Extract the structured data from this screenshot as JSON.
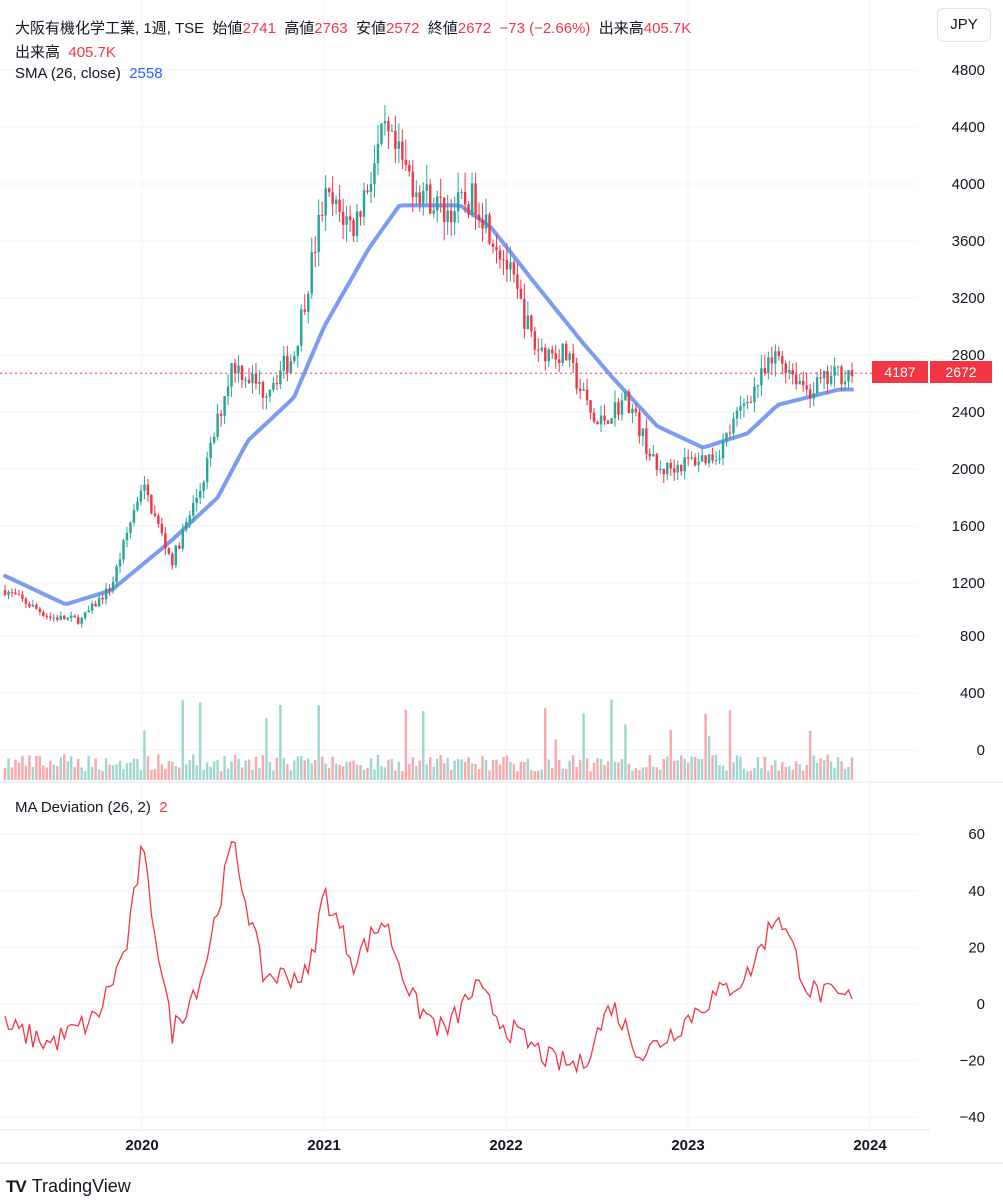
{
  "header": {
    "symbol_line": "大阪有機化学工業, 1週, TSE",
    "open_label": "始値",
    "open_value": "2741",
    "high_label": "高値",
    "high_value": "2763",
    "low_label": "安値",
    "low_value": "2572",
    "close_label": "終値",
    "close_value": "2672",
    "change": "−73 (−2.66%)",
    "volume_label": "出来高",
    "volume_value": "405.7K"
  },
  "volume_legend": {
    "label": "出来高",
    "value": "405.7K"
  },
  "sma_legend": {
    "label": "SMA (26, close)",
    "value": "2558"
  },
  "deviation_legend": {
    "label": "MA Deviation (26, 2)",
    "value": "2"
  },
  "currency_button": "JPY",
  "price_tags": {
    "countdown": "4187",
    "last_price": "2672"
  },
  "brand": {
    "name": "TradingView",
    "mark": "TV"
  },
  "colors": {
    "up": "#26a69a",
    "down": "#f23645",
    "sma": "#2962ff",
    "deviation": "#f23645"
  },
  "chart_data": {
    "type": "candlestick",
    "x_axis": {
      "ticks": [
        "2020",
        "2021",
        "2022",
        "2023",
        "2024"
      ]
    },
    "price_axis": {
      "ticks": [
        1200,
        1600,
        2000,
        2400,
        2800,
        3200,
        3600,
        4000,
        4400,
        4800
      ],
      "range": [
        1200,
        4800
      ]
    },
    "volume_axis": {
      "ticks": [
        0,
        400,
        800,
        1200
      ],
      "unit": "K"
    },
    "deviation_axis": {
      "ticks": [
        -40,
        -20,
        0,
        20,
        40,
        60
      ],
      "range": [
        -40,
        60
      ]
    },
    "price_path": [
      [
        "2019-04",
        1150
      ],
      [
        "2019-07",
        960
      ],
      [
        "2019-09",
        940
      ],
      [
        "2019-11",
        1180
      ],
      [
        "2020-01",
        1900
      ],
      [
        "2020-03",
        1350
      ],
      [
        "2020-05",
        1900
      ],
      [
        "2020-07",
        2750
      ],
      [
        "2020-09",
        2550
      ],
      [
        "2020-11",
        2800
      ],
      [
        "2021-01",
        3900
      ],
      [
        "2021-03",
        3700
      ],
      [
        "2021-05",
        4350
      ],
      [
        "2021-07",
        4000
      ],
      [
        "2021-09",
        3800
      ],
      [
        "2021-11",
        3900
      ],
      [
        "2022-01",
        3450
      ],
      [
        "2022-03",
        2850
      ],
      [
        "2022-05",
        2800
      ],
      [
        "2022-07",
        2300
      ],
      [
        "2022-09",
        2500
      ],
      [
        "2022-11",
        1980
      ],
      [
        "2023-01",
        2050
      ],
      [
        "2023-03",
        2100
      ],
      [
        "2023-05",
        2500
      ],
      [
        "2023-07",
        2800
      ],
      [
        "2023-09",
        2550
      ],
      [
        "2023-11",
        2672
      ]
    ],
    "sma_path": [
      [
        "2019-04",
        1250
      ],
      [
        "2019-08",
        1050
      ],
      [
        "2019-11",
        1150
      ],
      [
        "2020-03",
        1500
      ],
      [
        "2020-06",
        1800
      ],
      [
        "2020-08",
        2200
      ],
      [
        "2020-11",
        2500
      ],
      [
        "2021-01",
        3000
      ],
      [
        "2021-04",
        3550
      ],
      [
        "2021-06",
        3850
      ],
      [
        "2021-10",
        3850
      ],
      [
        "2021-12",
        3700
      ],
      [
        "2022-03",
        3300
      ],
      [
        "2022-06",
        2900
      ],
      [
        "2022-08",
        2650
      ],
      [
        "2022-11",
        2300
      ],
      [
        "2023-02",
        2150
      ],
      [
        "2023-05",
        2250
      ],
      [
        "2023-07",
        2450
      ],
      [
        "2023-11",
        2558
      ]
    ],
    "deviation_path": [
      [
        "2019-04",
        -8
      ],
      [
        "2019-07",
        -14
      ],
      [
        "2019-10",
        -5
      ],
      [
        "2019-12",
        20
      ],
      [
        "2020-01",
        55
      ],
      [
        "2020-03",
        -10
      ],
      [
        "2020-05",
        10
      ],
      [
        "2020-07",
        57
      ],
      [
        "2020-09",
        10
      ],
      [
        "2020-12",
        10
      ],
      [
        "2021-01",
        40
      ],
      [
        "2021-03",
        15
      ],
      [
        "2021-05",
        30
      ],
      [
        "2021-07",
        0
      ],
      [
        "2021-09",
        -10
      ],
      [
        "2021-11",
        6
      ],
      [
        "2022-01",
        -8
      ],
      [
        "2022-04",
        -20
      ],
      [
        "2022-06",
        -22
      ],
      [
        "2022-08",
        0
      ],
      [
        "2022-10",
        -18
      ],
      [
        "2022-12",
        -10
      ],
      [
        "2023-02",
        0
      ],
      [
        "2023-05",
        10
      ],
      [
        "2023-07",
        33
      ],
      [
        "2023-09",
        5
      ],
      [
        "2023-11",
        2
      ]
    ]
  }
}
